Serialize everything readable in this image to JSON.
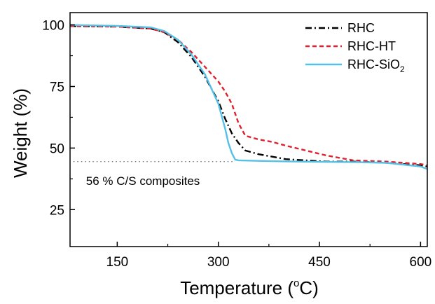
{
  "chart_data": {
    "type": "line",
    "xlabel": "Temperature (",
    "xlabel_sup": "o",
    "xlabel_end": "C)",
    "ylabel": "Weight (%)",
    "xlim": [
      80,
      610
    ],
    "ylim": [
      10,
      105
    ],
    "xticks": [
      150,
      300,
      450,
      600
    ],
    "yticks": [
      25,
      50,
      75,
      100
    ],
    "grid": false,
    "legend_position": "top-right",
    "series": [
      {
        "name": "RHC",
        "label_parts": [
          "RHC"
        ],
        "color": "#000000",
        "dash": "dash-dot",
        "x": [
          80,
          150,
          200,
          220,
          240,
          260,
          280,
          300,
          310,
          320,
          330,
          340,
          360,
          380,
          400,
          430,
          460,
          500,
          550,
          600,
          610
        ],
        "y": [
          99.5,
          99.3,
          98.5,
          97,
          93,
          87,
          79,
          69,
          62,
          56,
          52,
          49,
          47.5,
          46.5,
          45.5,
          45,
          44.5,
          44.5,
          44,
          43,
          42.5
        ]
      },
      {
        "name": "RHC-HT",
        "label_parts": [
          "RHC-HT"
        ],
        "color": "#e0202e",
        "dash": "dashed",
        "x": [
          80,
          150,
          200,
          220,
          240,
          260,
          280,
          300,
          310,
          320,
          330,
          340,
          360,
          380,
          400,
          430,
          460,
          500,
          550,
          600,
          610
        ],
        "y": [
          99.5,
          99.3,
          98.5,
          97,
          94,
          89,
          83,
          77,
          73,
          68,
          60,
          55,
          53.5,
          52.5,
          51,
          49,
          47,
          45,
          44.5,
          43.5,
          43
        ]
      },
      {
        "name": "RHC-SiO2",
        "label_parts": [
          "RHC-SiO",
          "2"
        ],
        "color": "#55c1e6",
        "dash": "solid",
        "x": [
          80,
          150,
          200,
          220,
          240,
          260,
          280,
          300,
          310,
          315,
          320,
          325,
          330,
          360,
          400,
          450,
          500,
          550,
          600,
          610
        ],
        "y": [
          100,
          99.6,
          99,
          97.5,
          94,
          88,
          80,
          68,
          58,
          52,
          48,
          45.3,
          45,
          44.8,
          44.6,
          44.4,
          44.3,
          44,
          42.5,
          41.5
        ]
      }
    ],
    "annotations": [
      {
        "text": "56 % C/S composites",
        "x": 85,
        "y": 35,
        "line_y": 44.5,
        "line_x": [
          85,
          325
        ]
      }
    ]
  }
}
